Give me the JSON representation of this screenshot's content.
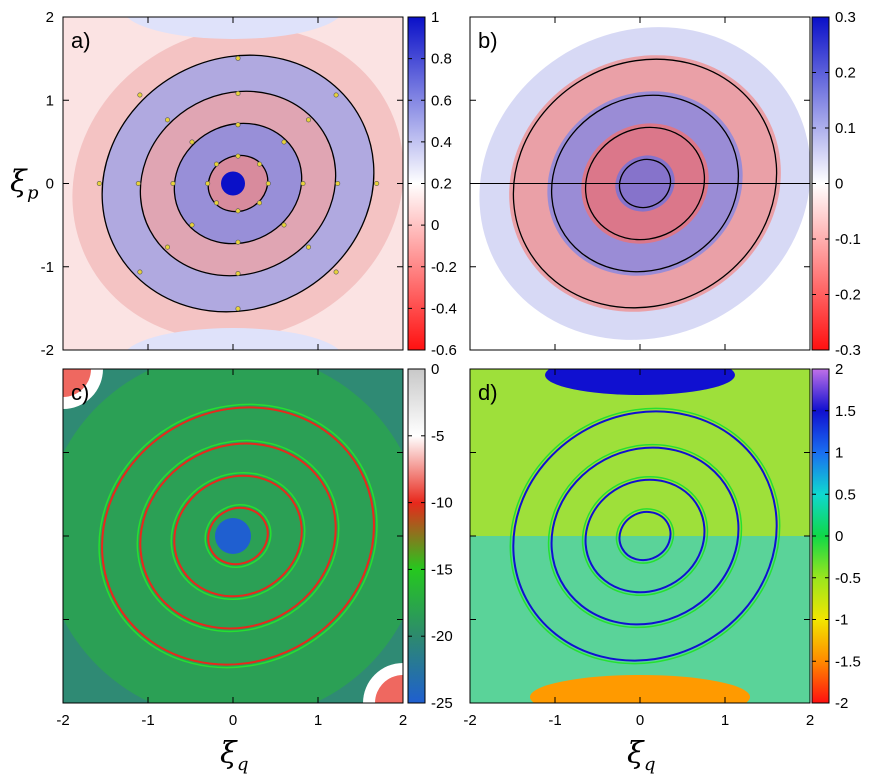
{
  "chart_data": [
    {
      "panel": "a",
      "type": "heatmap",
      "label": "a)",
      "x_range": [
        -2,
        2
      ],
      "y_range": [
        -2,
        2
      ],
      "x_ticks": [],
      "y_ticks": [
        "-2",
        "-1",
        "0",
        "1",
        "2"
      ],
      "ylabel": {
        "main": "ξ",
        "sub": "p"
      },
      "colorbar": {
        "range": [
          -0.6,
          1
        ],
        "ticks": [
          "1",
          "0.8",
          "0.6",
          "0.4",
          "0.2",
          "0",
          "-0.2",
          "-0.4",
          "-0.6"
        ],
        "colors": [
          "#ff1010",
          "#ffffff",
          "#0a10c8"
        ]
      },
      "contour_radii": [
        0.35,
        0.75,
        1.15,
        1.6
      ]
    },
    {
      "panel": "b",
      "type": "heatmap",
      "label": "b)",
      "x_range": [
        -2,
        2
      ],
      "y_range": [
        -2,
        2
      ],
      "x_ticks": [],
      "y_ticks": [],
      "colorbar": {
        "range": [
          -0.3,
          0.3
        ],
        "ticks": [
          "0.3",
          "0.2",
          "0.1",
          "0",
          "-0.1",
          "-0.2",
          "-0.3"
        ],
        "colors": [
          "#ff1010",
          "#ffffff",
          "#0a10c8"
        ]
      },
      "contour_radii": [
        0.3,
        0.7,
        1.1,
        1.55
      ]
    },
    {
      "panel": "c",
      "type": "heatmap",
      "label": "c)",
      "x_range": [
        -2,
        2
      ],
      "y_range": [
        -2,
        2
      ],
      "x_ticks": [
        "-2",
        "-1",
        "0",
        "1",
        "2"
      ],
      "y_ticks": [],
      "xlabel": {
        "main": "ξ",
        "sub": "q"
      },
      "colorbar": {
        "range": [
          -25,
          0
        ],
        "ticks": [
          "0",
          "-5",
          "-10",
          "-15",
          "-20",
          "-25"
        ],
        "colors": [
          "#1f5fd0",
          "#2d8a6e",
          "#25c81e",
          "#e8281c",
          "#ffffff",
          "#c8c8c8"
        ]
      },
      "ring_radii": [
        0.35,
        0.75,
        1.15,
        1.6
      ]
    },
    {
      "panel": "d",
      "type": "heatmap",
      "label": "d)",
      "x_range": [
        -2,
        2
      ],
      "y_range": [
        -2,
        2
      ],
      "x_ticks": [
        "-2",
        "-1",
        "0",
        "1",
        "2"
      ],
      "y_ticks": [],
      "xlabel": {
        "main": "ξ",
        "sub": "q"
      },
      "colorbar": {
        "range": [
          -2,
          2
        ],
        "ticks": [
          "2",
          "1.5",
          "1",
          "0.5",
          "0",
          "-0.5",
          "-1",
          "-1.5",
          "-2"
        ],
        "colors": [
          "#ff1010",
          "#ff8a00",
          "#f2e600",
          "#9ae61e",
          "#10d848",
          "#10d8d0",
          "#1a6ef0",
          "#1010d0",
          "#c070e8"
        ]
      },
      "ring_radii": [
        0.3,
        0.7,
        1.1,
        1.55
      ]
    }
  ]
}
